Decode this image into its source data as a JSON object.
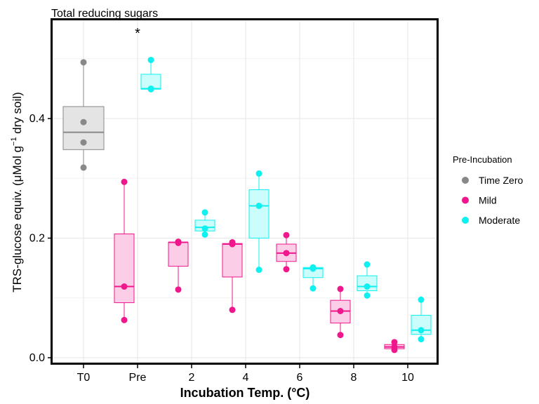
{
  "chart_data": {
    "type": "box",
    "title": "Total reducing sugars",
    "xlabel": "Incubation Temp. (°C)",
    "ylabel_main": "TRS-glucose equiv. (μMol g",
    "ylabel_sup": "−1",
    "ylabel_tail": " dry soil)",
    "x_tick_labels": [
      "T0",
      "Pre",
      "2",
      "4",
      "6",
      "8",
      "10"
    ],
    "y_ticks": [
      0.0,
      0.2,
      0.4
    ],
    "y_tick_labels": [
      "0.0",
      "0.2",
      "0.4"
    ],
    "ylim": [
      -0.01,
      0.56
    ],
    "grid": true,
    "legend_title": "Pre-Incubation",
    "legend_position": "right",
    "annotation": "*",
    "annotation_position": "Pre",
    "series": [
      {
        "name": "Time Zero",
        "color": "#888888",
        "fill": "#e4e4e4"
      },
      {
        "name": "Mild",
        "color": "#f0168c",
        "fill": "#fccde6"
      },
      {
        "name": "Moderate",
        "color": "#0ff0f0",
        "fill": "#ccfdfd"
      }
    ],
    "boxes": [
      {
        "group": "T0",
        "series": "Time Zero",
        "whisker_low": 0.318,
        "q1": 0.348,
        "median": 0.377,
        "q3": 0.42,
        "whisker_high": 0.494,
        "points": [
          0.494,
          0.394,
          0.36,
          0.318
        ]
      },
      {
        "group": "Pre",
        "series": "Mild",
        "whisker_low": 0.063,
        "q1": 0.092,
        "median": 0.119,
        "q3": 0.207,
        "whisker_high": 0.294,
        "points": [
          0.294,
          0.119,
          0.063
        ]
      },
      {
        "group": "Pre",
        "series": "Moderate",
        "whisker_low": 0.449,
        "q1": 0.449,
        "median": 0.45,
        "q3": 0.474,
        "whisker_high": 0.498,
        "points": [
          0.498,
          0.449,
          0.45
        ]
      },
      {
        "group": "2",
        "series": "Mild",
        "whisker_low": 0.114,
        "q1": 0.153,
        "median": 0.193,
        "q3": 0.193,
        "whisker_high": 0.194,
        "points": [
          0.194,
          0.192,
          0.114
        ]
      },
      {
        "group": "2",
        "series": "Moderate",
        "whisker_low": 0.206,
        "q1": 0.212,
        "median": 0.218,
        "q3": 0.23,
        "whisker_high": 0.243,
        "points": [
          0.243,
          0.216,
          0.206
        ]
      },
      {
        "group": "4",
        "series": "Mild",
        "whisker_low": 0.08,
        "q1": 0.135,
        "median": 0.19,
        "q3": 0.191,
        "whisker_high": 0.192,
        "points": [
          0.193,
          0.19,
          0.08
        ]
      },
      {
        "group": "4",
        "series": "Moderate",
        "whisker_low": 0.147,
        "q1": 0.2,
        "median": 0.254,
        "q3": 0.281,
        "whisker_high": 0.308,
        "points": [
          0.308,
          0.254,
          0.147
        ]
      },
      {
        "group": "6",
        "series": "Mild",
        "whisker_low": 0.148,
        "q1": 0.161,
        "median": 0.175,
        "q3": 0.19,
        "whisker_high": 0.205,
        "points": [
          0.205,
          0.175,
          0.148
        ]
      },
      {
        "group": "6",
        "series": "Moderate",
        "whisker_low": 0.116,
        "q1": 0.134,
        "median": 0.149,
        "q3": 0.151,
        "whisker_high": 0.151,
        "points": [
          0.151,
          0.149,
          0.116
        ]
      },
      {
        "group": "8",
        "series": "Mild",
        "whisker_low": 0.038,
        "q1": 0.058,
        "median": 0.078,
        "q3": 0.096,
        "whisker_high": 0.115,
        "points": [
          0.115,
          0.078,
          0.038
        ]
      },
      {
        "group": "8",
        "series": "Moderate",
        "whisker_low": 0.104,
        "q1": 0.112,
        "median": 0.119,
        "q3": 0.137,
        "whisker_high": 0.156,
        "points": [
          0.156,
          0.119,
          0.104
        ]
      },
      {
        "group": "10",
        "series": "Mild",
        "whisker_low": 0.013,
        "q1": 0.015,
        "median": 0.018,
        "q3": 0.022,
        "whisker_high": 0.026,
        "points": [
          0.026,
          0.018,
          0.013
        ]
      },
      {
        "group": "10",
        "series": "Moderate",
        "whisker_low": 0.031,
        "q1": 0.039,
        "median": 0.046,
        "q3": 0.071,
        "whisker_high": 0.097,
        "points": [
          0.097,
          0.046,
          0.031
        ]
      }
    ]
  }
}
